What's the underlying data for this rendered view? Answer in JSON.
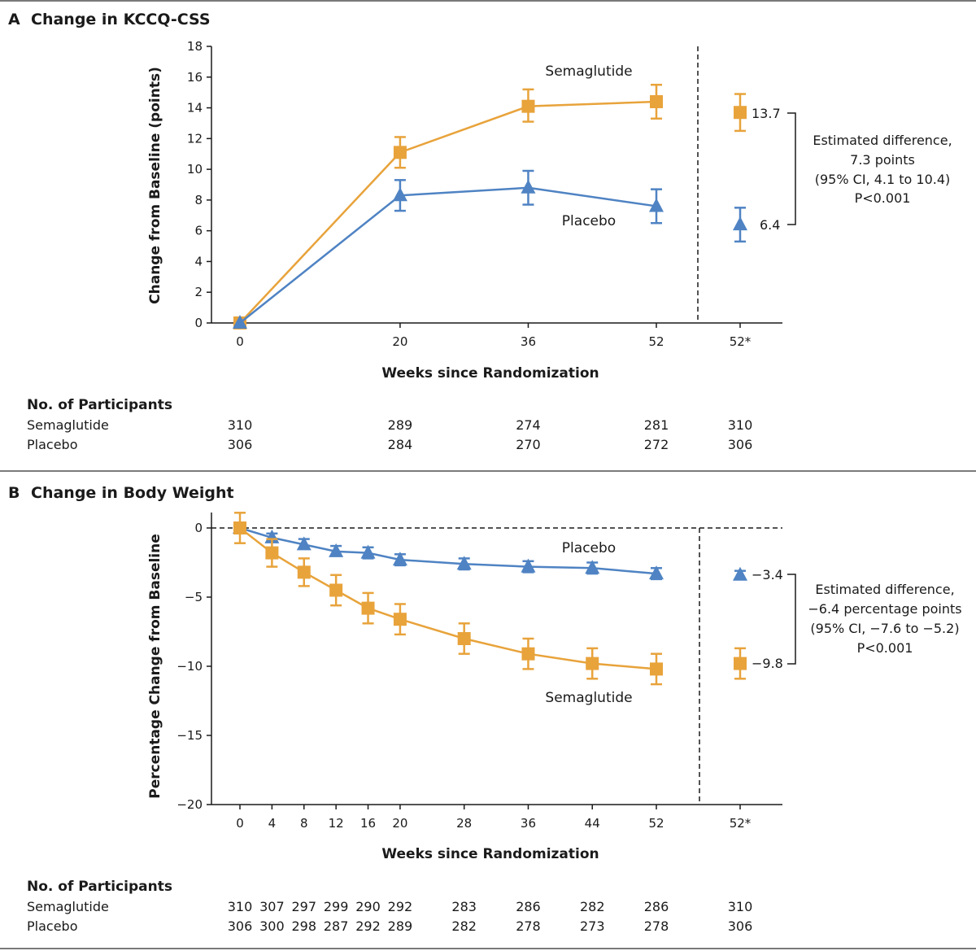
{
  "colors": {
    "semaglutide": "#e8a33b",
    "placebo": "#4f83c3",
    "axis": "#1a1a1a",
    "divider": "#7a7a7a"
  },
  "chart_data": [
    {
      "type": "line",
      "panel_letter": "A",
      "title": "Change in KCCQ-CSS",
      "xlabel": "Weeks since Randomization",
      "ylabel": "Change from Baseline (points)",
      "ylim": [
        0,
        18
      ],
      "yticks": [
        "0",
        "2",
        "4",
        "6",
        "8",
        "10",
        "12",
        "14",
        "16",
        "18"
      ],
      "x": [
        0,
        20,
        36,
        52
      ],
      "xtick_labels": [
        "0",
        "20",
        "36",
        "52"
      ],
      "extra_tick_label": "52*",
      "series": [
        {
          "name": "Semaglutide",
          "marker": "square",
          "values": [
            0,
            11.1,
            14.1,
            14.4
          ],
          "err_low": [
            0,
            10.1,
            13.1,
            13.3
          ],
          "err_high": [
            0,
            12.1,
            15.2,
            15.5
          ]
        },
        {
          "name": "Placebo",
          "marker": "triangle",
          "values": [
            0,
            8.3,
            8.8,
            7.6
          ],
          "err_low": [
            0,
            7.3,
            7.7,
            6.5
          ],
          "err_high": [
            0,
            9.3,
            9.9,
            8.7
          ]
        }
      ],
      "estimate": {
        "semaglutide": {
          "value": 13.7,
          "label": "13.7",
          "low": 12.5,
          "high": 14.9
        },
        "placebo": {
          "value": 6.4,
          "label": "6.4",
          "low": 5.3,
          "high": 7.5
        },
        "annotation": [
          "Estimated difference,",
          "7.3 points",
          "(95% CI, 4.1 to 10.4)",
          "P<0.001"
        ]
      },
      "participants": {
        "heading": "No. of Participants",
        "rows": [
          {
            "name": "Semaglutide",
            "counts": [
              "310",
              "289",
              "274",
              "281"
            ],
            "extra": "310"
          },
          {
            "name": "Placebo",
            "counts": [
              "306",
              "284",
              "270",
              "272"
            ],
            "extra": "306"
          }
        ]
      }
    },
    {
      "type": "line",
      "panel_letter": "B",
      "title": "Change in Body Weight",
      "xlabel": "Weeks since Randomization",
      "ylabel": "Percentage Change from Baseline",
      "ylim": [
        -20,
        0
      ],
      "yticks": [
        "−20",
        "−15",
        "−10",
        "−5",
        "0"
      ],
      "ytick_values": [
        -20,
        -15,
        -10,
        -5,
        0
      ],
      "x": [
        0,
        4,
        8,
        12,
        16,
        20,
        28,
        36,
        44,
        52
      ],
      "xtick_labels": [
        "0",
        "4",
        "8",
        "12",
        "16",
        "20",
        "28",
        "36",
        "44",
        "52"
      ],
      "extra_tick_label": "52*",
      "series": [
        {
          "name": "Placebo",
          "marker": "triangle",
          "values": [
            0,
            -0.7,
            -1.2,
            -1.7,
            -1.8,
            -2.3,
            -2.6,
            -2.8,
            -2.9,
            -3.3
          ],
          "err_low": [
            0,
            -1.0,
            -1.5,
            -2.0,
            -2.2,
            -2.7,
            -3.0,
            -3.2,
            -3.3,
            -3.7
          ],
          "err_high": [
            0,
            -0.4,
            -0.8,
            -1.3,
            -1.4,
            -1.9,
            -2.2,
            -2.4,
            -2.5,
            -2.9
          ]
        },
        {
          "name": "Semaglutide",
          "marker": "square",
          "values": [
            0,
            -1.8,
            -3.2,
            -4.5,
            -5.8,
            -6.6,
            -8.0,
            -9.1,
            -9.8,
            -10.2
          ],
          "err_low": [
            -1.1,
            -2.8,
            -4.2,
            -5.6,
            -6.9,
            -7.7,
            -9.1,
            -10.2,
            -10.9,
            -11.3
          ],
          "err_high": [
            1.1,
            -0.8,
            -2.2,
            -3.4,
            -4.7,
            -5.5,
            -6.9,
            -8.0,
            -8.7,
            -9.1
          ]
        }
      ],
      "estimate": {
        "placebo": {
          "value": -3.4,
          "label": "−3.4",
          "low": -3.7,
          "high": -3.1
        },
        "semaglutide": {
          "value": -9.8,
          "label": "−9.8",
          "low": -10.9,
          "high": -8.7
        },
        "annotation": [
          "Estimated difference,",
          "−6.4 percentage points",
          "(95% CI, −7.6 to −5.2)",
          "P<0.001"
        ]
      },
      "participants": {
        "heading": "No. of Participants",
        "rows": [
          {
            "name": "Semaglutide",
            "counts": [
              "310",
              "307",
              "297",
              "299",
              "290",
              "292",
              "283",
              "286",
              "282",
              "286"
            ],
            "extra": "310"
          },
          {
            "name": "Placebo",
            "counts": [
              "306",
              "300",
              "298",
              "287",
              "292",
              "289",
              "282",
              "278",
              "273",
              "278"
            ],
            "extra": "306"
          }
        ]
      }
    }
  ]
}
